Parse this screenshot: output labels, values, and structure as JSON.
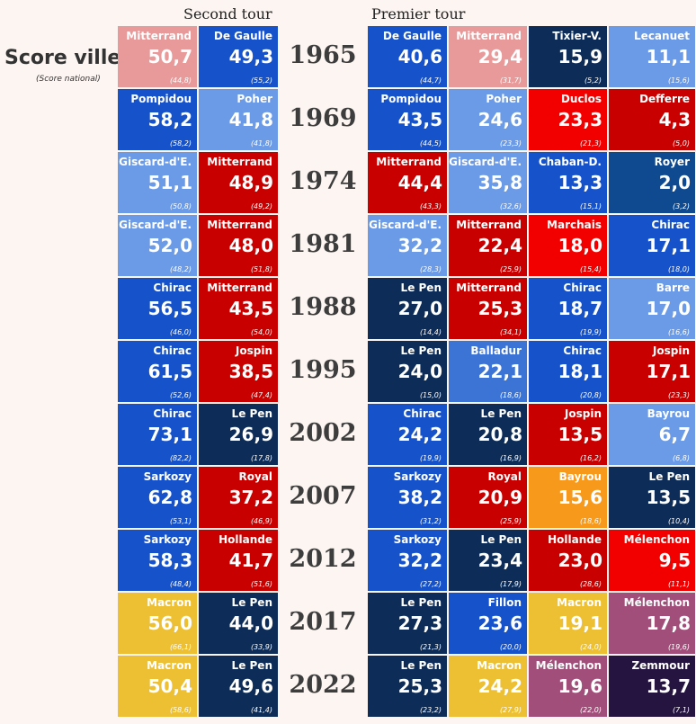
{
  "chart_data": {
    "type": "table",
    "title": "Score ville",
    "subtitle": "(Score national)",
    "headers": {
      "second_round": "Second tour",
      "first_round": "Premier tour"
    },
    "rows": [
      {
        "year": "1965",
        "second": [
          {
            "name": "Mitterrand",
            "score": "50,7",
            "national": "(44,8)",
            "color": "#e89a9a"
          },
          {
            "name": "De Gaulle",
            "score": "49,3",
            "national": "(55,2)",
            "color": "#1652c9"
          }
        ],
        "first": [
          {
            "name": "De Gaulle",
            "score": "40,6",
            "national": "(44,7)",
            "color": "#1652c9"
          },
          {
            "name": "Mitterrand",
            "score": "29,4",
            "national": "(31,7)",
            "color": "#e89a9a"
          },
          {
            "name": "Tixier-V.",
            "score": "15,9",
            "national": "(5,2)",
            "color": "#0d2d58"
          },
          {
            "name": "Lecanuet",
            "score": "11,1",
            "national": "(15,6)",
            "color": "#6b9ae6"
          }
        ]
      },
      {
        "year": "1969",
        "second": [
          {
            "name": "Pompidou",
            "score": "58,2",
            "national": "(58,2)",
            "color": "#1652c9"
          },
          {
            "name": "Poher",
            "score": "41,8",
            "national": "(41,8)",
            "color": "#6b9ae6"
          }
        ],
        "first": [
          {
            "name": "Pompidou",
            "score": "43,5",
            "national": "(44,5)",
            "color": "#1652c9"
          },
          {
            "name": "Poher",
            "score": "24,6",
            "national": "(23,3)",
            "color": "#6b9ae6"
          },
          {
            "name": "Duclos",
            "score": "23,3",
            "national": "(21,3)",
            "color": "#f20000"
          },
          {
            "name": "Defferre",
            "score": "4,3",
            "national": "(5,0)",
            "color": "#c90000"
          }
        ]
      },
      {
        "year": "1974",
        "second": [
          {
            "name": "Giscard-d'E.",
            "score": "51,1",
            "national": "(50,8)",
            "color": "#6b9ae6"
          },
          {
            "name": "Mitterrand",
            "score": "48,9",
            "national": "(49,2)",
            "color": "#c90000"
          }
        ],
        "first": [
          {
            "name": "Mitterrand",
            "score": "44,4",
            "national": "(43,3)",
            "color": "#c90000"
          },
          {
            "name": "Giscard-d'E.",
            "score": "35,8",
            "national": "(32,6)",
            "color": "#6b9ae6"
          },
          {
            "name": "Chaban-D.",
            "score": "13,3",
            "national": "(15,1)",
            "color": "#1652c9"
          },
          {
            "name": "Royer",
            "score": "2,0",
            "national": "(3,2)",
            "color": "#0f4a91"
          }
        ]
      },
      {
        "year": "1981",
        "second": [
          {
            "name": "Giscard-d'E.",
            "score": "52,0",
            "national": "(48,2)",
            "color": "#6b9ae6"
          },
          {
            "name": "Mitterrand",
            "score": "48,0",
            "national": "(51,8)",
            "color": "#c90000"
          }
        ],
        "first": [
          {
            "name": "Giscard-d'E.",
            "score": "32,2",
            "national": "(28,3)",
            "color": "#6b9ae6"
          },
          {
            "name": "Mitterrand",
            "score": "22,4",
            "national": "(25,9)",
            "color": "#c90000"
          },
          {
            "name": "Marchais",
            "score": "18,0",
            "national": "(15,4)",
            "color": "#f20000"
          },
          {
            "name": "Chirac",
            "score": "17,1",
            "national": "(18,0)",
            "color": "#1652c9"
          }
        ]
      },
      {
        "year": "1988",
        "second": [
          {
            "name": "Chirac",
            "score": "56,5",
            "national": "(46,0)",
            "color": "#1652c9"
          },
          {
            "name": "Mitterrand",
            "score": "43,5",
            "national": "(54,0)",
            "color": "#c90000"
          }
        ],
        "first": [
          {
            "name": "Le Pen",
            "score": "27,0",
            "national": "(14,4)",
            "color": "#0d2d58"
          },
          {
            "name": "Mitterrand",
            "score": "25,3",
            "national": "(34,1)",
            "color": "#c90000"
          },
          {
            "name": "Chirac",
            "score": "18,7",
            "national": "(19,9)",
            "color": "#1652c9"
          },
          {
            "name": "Barre",
            "score": "17,0",
            "national": "(16,6)",
            "color": "#6b9ae6"
          }
        ]
      },
      {
        "year": "1995",
        "second": [
          {
            "name": "Chirac",
            "score": "61,5",
            "national": "(52,6)",
            "color": "#1652c9"
          },
          {
            "name": "Jospin",
            "score": "38,5",
            "national": "(47,4)",
            "color": "#c90000"
          }
        ],
        "first": [
          {
            "name": "Le Pen",
            "score": "24,0",
            "national": "(15,0)",
            "color": "#0d2d58"
          },
          {
            "name": "Balladur",
            "score": "22,1",
            "national": "(18,6)",
            "color": "#3c74d6"
          },
          {
            "name": "Chirac",
            "score": "18,1",
            "national": "(20,8)",
            "color": "#1652c9"
          },
          {
            "name": "Jospin",
            "score": "17,1",
            "national": "(23,3)",
            "color": "#c90000"
          }
        ]
      },
      {
        "year": "2002",
        "second": [
          {
            "name": "Chirac",
            "score": "73,1",
            "national": "(82,2)",
            "color": "#1652c9"
          },
          {
            "name": "Le Pen",
            "score": "26,9",
            "national": "(17,8)",
            "color": "#0d2d58"
          }
        ],
        "first": [
          {
            "name": "Chirac",
            "score": "24,2",
            "national": "(19,9)",
            "color": "#1652c9"
          },
          {
            "name": "Le Pen",
            "score": "20,8",
            "national": "(16,9)",
            "color": "#0d2d58"
          },
          {
            "name": "Jospin",
            "score": "13,5",
            "national": "(16,2)",
            "color": "#c90000"
          },
          {
            "name": "Bayrou",
            "score": "6,7",
            "national": "(6,8)",
            "color": "#6b9ae6"
          }
        ]
      },
      {
        "year": "2007",
        "second": [
          {
            "name": "Sarkozy",
            "score": "62,8",
            "national": "(53,1)",
            "color": "#1652c9"
          },
          {
            "name": "Royal",
            "score": "37,2",
            "national": "(46,9)",
            "color": "#c90000"
          }
        ],
        "first": [
          {
            "name": "Sarkozy",
            "score": "38,2",
            "national": "(31,2)",
            "color": "#1652c9"
          },
          {
            "name": "Royal",
            "score": "20,9",
            "national": "(25,9)",
            "color": "#c90000"
          },
          {
            "name": "Bayrou",
            "score": "15,6",
            "national": "(18,6)",
            "color": "#f79a1c"
          },
          {
            "name": "Le Pen",
            "score": "13,5",
            "national": "(10,4)",
            "color": "#0d2d58"
          }
        ]
      },
      {
        "year": "2012",
        "second": [
          {
            "name": "Sarkozy",
            "score": "58,3",
            "national": "(48,4)",
            "color": "#1652c9"
          },
          {
            "name": "Hollande",
            "score": "41,7",
            "national": "(51,6)",
            "color": "#c90000"
          }
        ],
        "first": [
          {
            "name": "Sarkozy",
            "score": "32,2",
            "national": "(27,2)",
            "color": "#1652c9"
          },
          {
            "name": "Le Pen",
            "score": "23,4",
            "national": "(17,9)",
            "color": "#0d2d58"
          },
          {
            "name": "Hollande",
            "score": "23,0",
            "national": "(28,6)",
            "color": "#c90000"
          },
          {
            "name": "Mélenchon",
            "score": "9,5",
            "national": "(11,1)",
            "color": "#f20000"
          }
        ]
      },
      {
        "year": "2017",
        "second": [
          {
            "name": "Macron",
            "score": "56,0",
            "national": "(66,1)",
            "color": "#edc034"
          },
          {
            "name": "Le Pen",
            "score": "44,0",
            "national": "(33,9)",
            "color": "#0d2d58"
          }
        ],
        "first": [
          {
            "name": "Le Pen",
            "score": "27,3",
            "national": "(21,3)",
            "color": "#0d2d58"
          },
          {
            "name": "Fillon",
            "score": "23,6",
            "national": "(20,0)",
            "color": "#1652c9"
          },
          {
            "name": "Macron",
            "score": "19,1",
            "national": "(24,0)",
            "color": "#edc034"
          },
          {
            "name": "Mélenchon",
            "score": "17,8",
            "national": "(19,6)",
            "color": "#a14f7a"
          }
        ]
      },
      {
        "year": "2022",
        "second": [
          {
            "name": "Macron",
            "score": "50,4",
            "national": "(58,6)",
            "color": "#edc034"
          },
          {
            "name": "Le Pen",
            "score": "49,6",
            "national": "(41,4)",
            "color": "#0d2d58"
          }
        ],
        "first": [
          {
            "name": "Le Pen",
            "score": "25,3",
            "national": "(23,2)",
            "color": "#0d2d58"
          },
          {
            "name": "Macron",
            "score": "24,2",
            "national": "(27,9)",
            "color": "#edc034"
          },
          {
            "name": "Mélenchon",
            "score": "19,6",
            "national": "(22,0)",
            "color": "#a14f7a"
          },
          {
            "name": "Zemmour",
            "score": "13,7",
            "national": "(7,1)",
            "color": "#24143f"
          }
        ]
      }
    ]
  }
}
